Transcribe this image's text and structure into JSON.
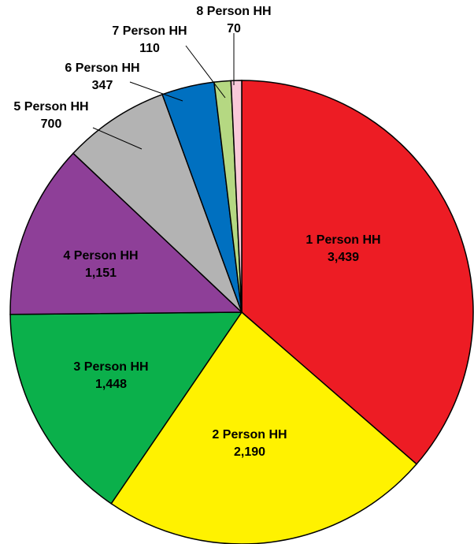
{
  "chart_data": {
    "type": "pie",
    "categories": [
      "1 Person HH",
      "2 Person HH",
      "3 Person HH",
      "4 Person HH",
      "5 Person HH",
      "6 Person HH",
      "7 Person HH",
      "8 Person HH"
    ],
    "values": [
      3439,
      2190,
      1448,
      1151,
      700,
      347,
      110,
      70
    ],
    "value_labels": [
      "3,439",
      "2,190",
      "1,448",
      "1,151",
      "700",
      "347",
      "110",
      "70"
    ],
    "colors": [
      "#ed1c24",
      "#fff200",
      "#0bb04b",
      "#8e3f98",
      "#b3b3b3",
      "#0070c0",
      "#b5d882",
      "#f9c9d9"
    ]
  }
}
